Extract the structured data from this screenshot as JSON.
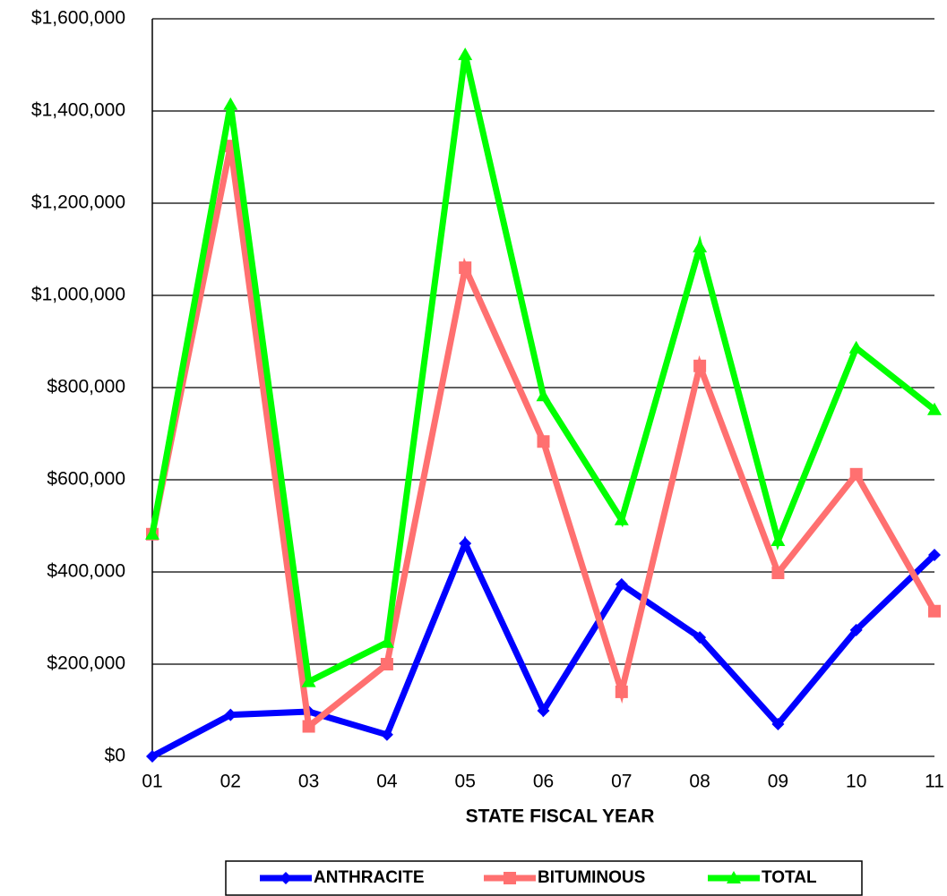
{
  "chart_data": {
    "type": "line",
    "x_label": "STATE FISCAL YEAR",
    "categories": [
      "01",
      "02",
      "03",
      "04",
      "05",
      "06",
      "07",
      "08",
      "09",
      "10",
      "11"
    ],
    "series": [
      {
        "name": "ANTHRACITE",
        "color": "#0000ff",
        "marker": "diamond",
        "values": [
          0,
          90000,
          97000,
          47000,
          462000,
          99000,
          373000,
          258000,
          70000,
          274000,
          437000
        ]
      },
      {
        "name": "BITUMINOUS",
        "color": "#ff7070",
        "marker": "square",
        "values": [
          482000,
          1324000,
          65000,
          200000,
          1060000,
          683000,
          140000,
          847000,
          398000,
          612000,
          315000
        ]
      },
      {
        "name": "TOTAL",
        "color": "#00ff00",
        "marker": "triangle",
        "values": [
          482000,
          1414000,
          162000,
          247000,
          1522000,
          782000,
          513000,
          1105000,
          468000,
          886000,
          752000
        ]
      }
    ],
    "ylim": [
      0,
      1600000
    ],
    "yticks": [
      {
        "value": 0,
        "label": "$0"
      },
      {
        "value": 200000,
        "label": "$200,000"
      },
      {
        "value": 400000,
        "label": "$400,000"
      },
      {
        "value": 600000,
        "label": "$600,000"
      },
      {
        "value": 800000,
        "label": "$800,000"
      },
      {
        "value": 1000000,
        "label": "$1,000,000"
      },
      {
        "value": 1200000,
        "label": "$1,200,000"
      },
      {
        "value": 1400000,
        "label": "$1,400,000"
      },
      {
        "value": 1600000,
        "label": "$1,600,000"
      }
    ],
    "grid": true,
    "legend": "bottom"
  }
}
